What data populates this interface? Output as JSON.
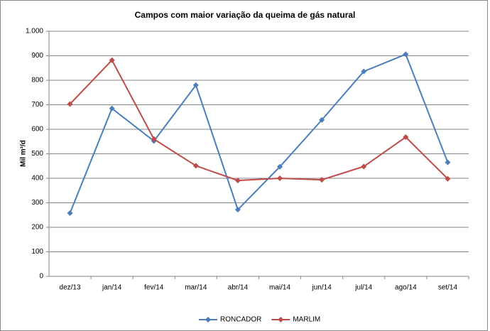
{
  "chart_data": {
    "type": "line",
    "title": "Campos com maior variação da queima de gás natural",
    "y_label": "Mil m³/d",
    "categories": [
      "dez/13",
      "jan/14",
      "fev/14",
      "mar/14",
      "abr/14",
      "mai/14",
      "jun/14",
      "jul/14",
      "ago/14",
      "set/14"
    ],
    "series": [
      {
        "name": "RONCADOR",
        "color": "#4a7ebb",
        "values": [
          258,
          685,
          552,
          780,
          272,
          447,
          638,
          836,
          906,
          465
        ]
      },
      {
        "name": "MARLIM",
        "color": "#be4b48",
        "values": [
          703,
          882,
          560,
          451,
          391,
          400,
          394,
          448,
          568,
          398
        ]
      }
    ],
    "ylim": [
      0,
      1000
    ],
    "yticks": [
      0,
      100,
      200,
      300,
      400,
      500,
      600,
      700,
      800,
      900,
      {
        "value": 1000,
        "label": "1.000"
      }
    ],
    "grid": true,
    "legend": "bottom"
  }
}
